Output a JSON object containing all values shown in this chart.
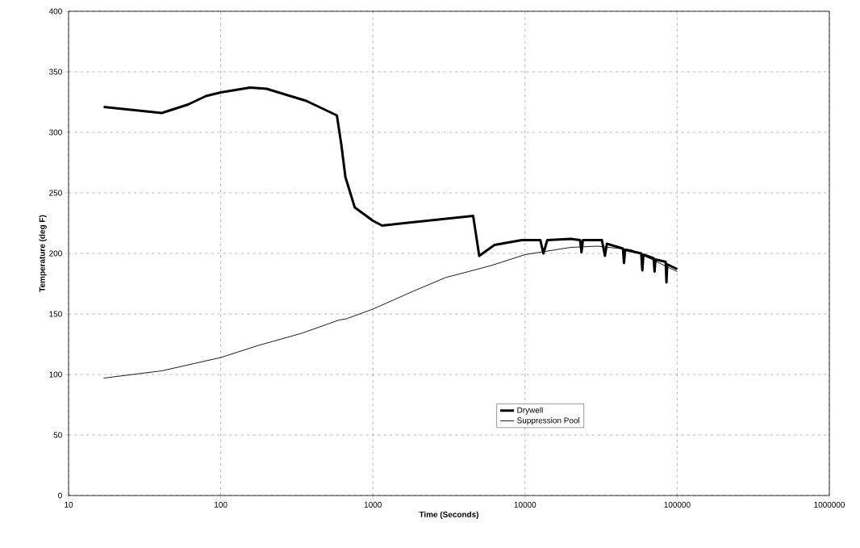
{
  "chart_data": {
    "type": "line",
    "xlabel": "Time (Seconds)",
    "ylabel": "Temperature (deg F)",
    "log": "x",
    "grid": true,
    "legend": "bottom",
    "xlim": [
      10,
      1000000
    ],
    "ylim": [
      0,
      400
    ],
    "xticks": [
      10,
      100,
      1000,
      10000,
      100000,
      1000000
    ],
    "yticks": [
      0,
      50,
      100,
      150,
      200,
      250,
      300,
      350,
      400
    ],
    "series": [
      {
        "name": "Drywell",
        "color": "#000000",
        "x": [
          17,
          41,
          61,
          80,
          100,
          156,
          200,
          365,
          580,
          620,
          660,
          760,
          1000,
          1150,
          4560,
          5000,
          6300,
          9500,
          12600,
          13200,
          14000,
          20000,
          23000,
          23500,
          24000,
          32000,
          33500,
          34500,
          44000,
          44700,
          45500,
          58000,
          59000,
          60000,
          70000,
          71000,
          72000,
          84000,
          85000,
          86000,
          100000
        ],
        "values": [
          321,
          316,
          323,
          330,
          333,
          337,
          336,
          326,
          314,
          290,
          263,
          238,
          227,
          223,
          231,
          198,
          207,
          211,
          211,
          200,
          211,
          212,
          211,
          201,
          211,
          211,
          198,
          208,
          204,
          192,
          203,
          200,
          186,
          199,
          196,
          185,
          195,
          193,
          176,
          191,
          187
        ]
      },
      {
        "name": "Suppression Pool",
        "color": "#000000",
        "x": [
          17,
          41,
          100,
          177,
          340,
          600,
          670,
          1000,
          1860,
          3000,
          4250,
          6000,
          10000,
          20000,
          30000,
          50000,
          100000
        ],
        "values": [
          97,
          103,
          114,
          124,
          134,
          145,
          146,
          154,
          169,
          180,
          185,
          190,
          199,
          205,
          206,
          203,
          185
        ]
      }
    ]
  }
}
